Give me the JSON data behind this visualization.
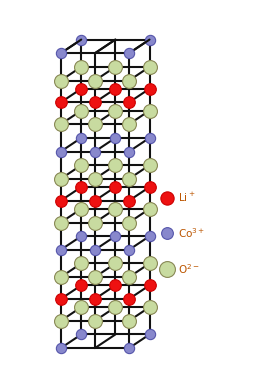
{
  "colors": {
    "Li": "#ee1111",
    "Co": "#8888cc",
    "O": "#c8dba0",
    "bond": "#111111",
    "bg": "#ffffff",
    "O_edge": "#888855",
    "legend_text": "#bb5500"
  },
  "legend": {
    "Li_label": "Li$^+$",
    "Co_label": "Co$^{3+}$",
    "O_label": "O$^{2-}$"
  },
  "figsize": [
    2.56,
    3.72
  ],
  "dpi": 100
}
